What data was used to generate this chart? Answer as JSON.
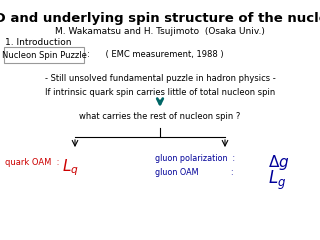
{
  "title": "GPD and underlying spin structure of the nucleon",
  "author": "M. Wakamatsu and H. Tsujimoto  (Osaka Univ.)",
  "section": "1. Introduction",
  "box_label": "Nucleon Spin Puzzle",
  "box_text": ":      ( EMC measurement, 1988 )",
  "bullet1": "- Still unsolved fundamental puzzle in hadron physics -",
  "bullet2": "If intrinsic quark spin carries little of total nucleon spin",
  "question": "what carries the rest of nucleon spin ?",
  "quark_oam_text": "quark OAM  :  ",
  "quark_oam_math": "$L_q$",
  "gluon_pol_text": "gluon polarization  :  ",
  "gluon_pol_math": "$\\Delta g$",
  "gluon_oam_text": "gluon OAM             :  ",
  "gluon_oam_math": "$L_g$",
  "bg_color": "#ffffff",
  "title_color": "#000000",
  "quark_color": "#cc0000",
  "gluon_color": "#000099",
  "box_border_color": "#999999",
  "arrow_color": "#006666"
}
